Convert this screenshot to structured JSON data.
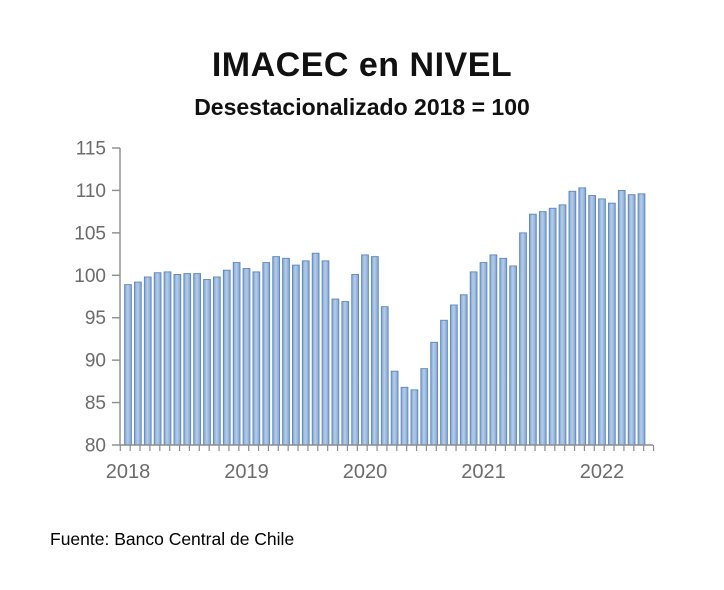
{
  "header": {
    "title": "IMACEC en NIVEL",
    "subtitle": "Desestacionalizado 2018 = 100"
  },
  "footer": {
    "source": "Fuente: Banco Central de Chile"
  },
  "colors": {
    "bar_fill_edge": "#7FA3D0",
    "bar_fill_center": "#B6CDEA",
    "bar_border": "#5C88BD",
    "axis": "#8C8C8C",
    "tick_label": "#6B6B6B",
    "title_text": "#111111",
    "background": "#FFFFFF"
  },
  "chart_data": {
    "type": "bar",
    "title": "IMACEC en NIVEL",
    "subtitle": "Desestacionalizado 2018 = 100",
    "xlabel": "",
    "ylabel": "",
    "ylim": [
      80,
      115
    ],
    "ytick_step": 5,
    "ytick_labels": [
      "80",
      "85",
      "90",
      "95",
      "100",
      "105",
      "110",
      "115"
    ],
    "x_year_labels": [
      "2018",
      "2019",
      "2020",
      "2021",
      "2022"
    ],
    "grid": false,
    "legend": "none",
    "source_caption": "Fuente: Banco Central de Chile",
    "categories": [
      "2018-01",
      "2018-02",
      "2018-03",
      "2018-04",
      "2018-05",
      "2018-06",
      "2018-07",
      "2018-08",
      "2018-09",
      "2018-10",
      "2018-11",
      "2018-12",
      "2019-01",
      "2019-02",
      "2019-03",
      "2019-04",
      "2019-05",
      "2019-06",
      "2019-07",
      "2019-08",
      "2019-09",
      "2019-10",
      "2019-11",
      "2019-12",
      "2020-01",
      "2020-02",
      "2020-03",
      "2020-04",
      "2020-05",
      "2020-06",
      "2020-07",
      "2020-08",
      "2020-09",
      "2020-10",
      "2020-11",
      "2020-12",
      "2021-01",
      "2021-02",
      "2021-03",
      "2021-04",
      "2021-05",
      "2021-06",
      "2021-07",
      "2021-08",
      "2021-09",
      "2021-10",
      "2021-11",
      "2021-12",
      "2022-01",
      "2022-02",
      "2022-03",
      "2022-04",
      "2022-05"
    ],
    "values": [
      98.9,
      99.2,
      99.8,
      100.3,
      100.4,
      100.1,
      100.2,
      100.2,
      99.5,
      99.8,
      100.6,
      101.5,
      100.8,
      100.4,
      101.5,
      102.2,
      102.0,
      101.2,
      101.7,
      102.6,
      101.7,
      97.2,
      96.9,
      100.1,
      102.4,
      102.2,
      96.3,
      88.7,
      86.8,
      86.5,
      89.0,
      92.1,
      94.7,
      96.5,
      97.7,
      100.4,
      101.5,
      102.4,
      102.0,
      101.1,
      105.0,
      107.2,
      107.5,
      107.9,
      108.3,
      109.9,
      110.3,
      109.4,
      109.0,
      108.5,
      110.0,
      109.5,
      109.6
    ]
  }
}
